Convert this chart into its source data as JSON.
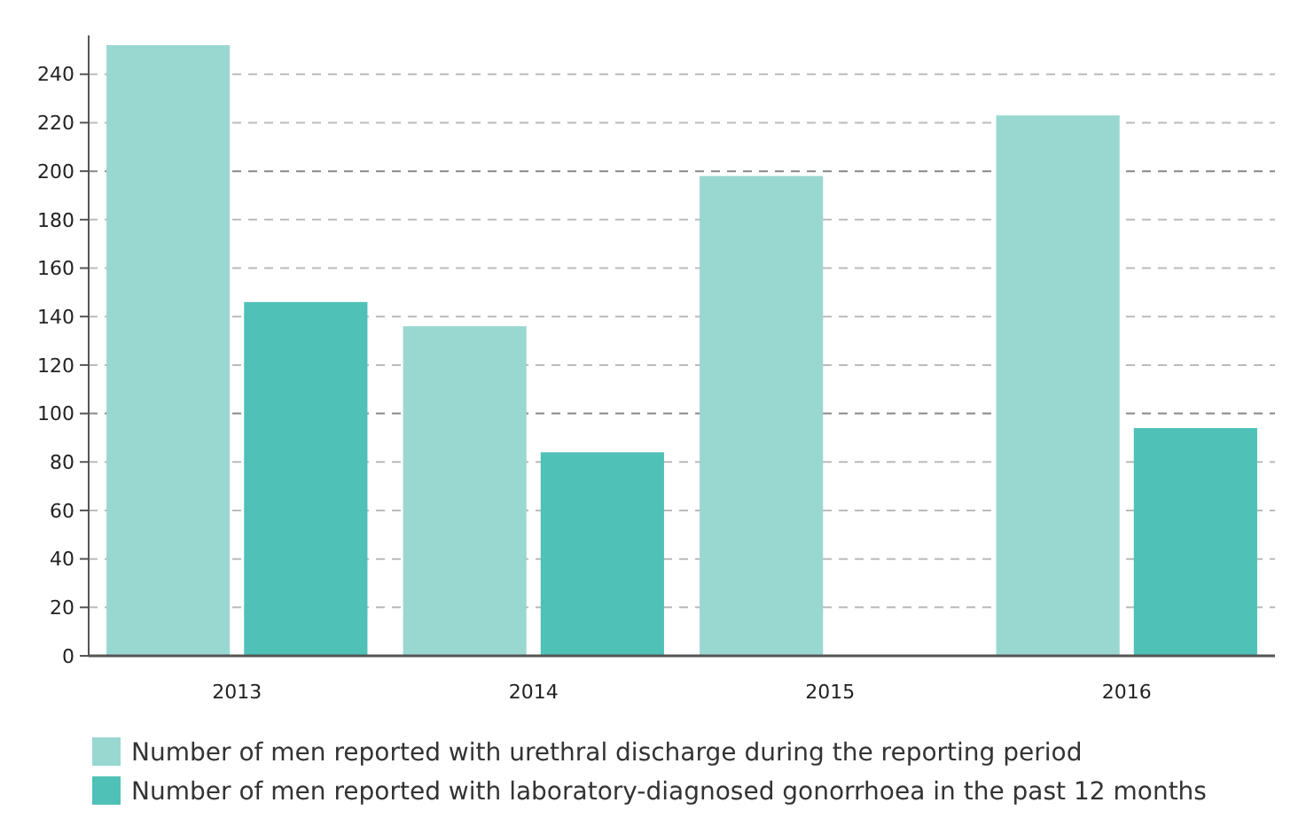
{
  "chart_data": {
    "type": "bar",
    "categories": [
      "2013",
      "2014",
      "2015",
      "2016"
    ],
    "series": [
      {
        "name": "Number of men reported with urethral discharge during the reporting period",
        "color": "#99d8d1",
        "values": [
          252,
          136,
          198,
          223
        ]
      },
      {
        "name": "Number of men reported with laboratory-diagnosed gonorrhoea in the past 12 months",
        "color": "#4fc1b7",
        "values": [
          146,
          84,
          null,
          94
        ]
      }
    ],
    "ylim": [
      0,
      256
    ],
    "yticks": [
      0,
      20,
      40,
      60,
      80,
      100,
      120,
      140,
      160,
      180,
      200,
      220,
      240
    ],
    "grid": "y",
    "legend": "bottom"
  }
}
